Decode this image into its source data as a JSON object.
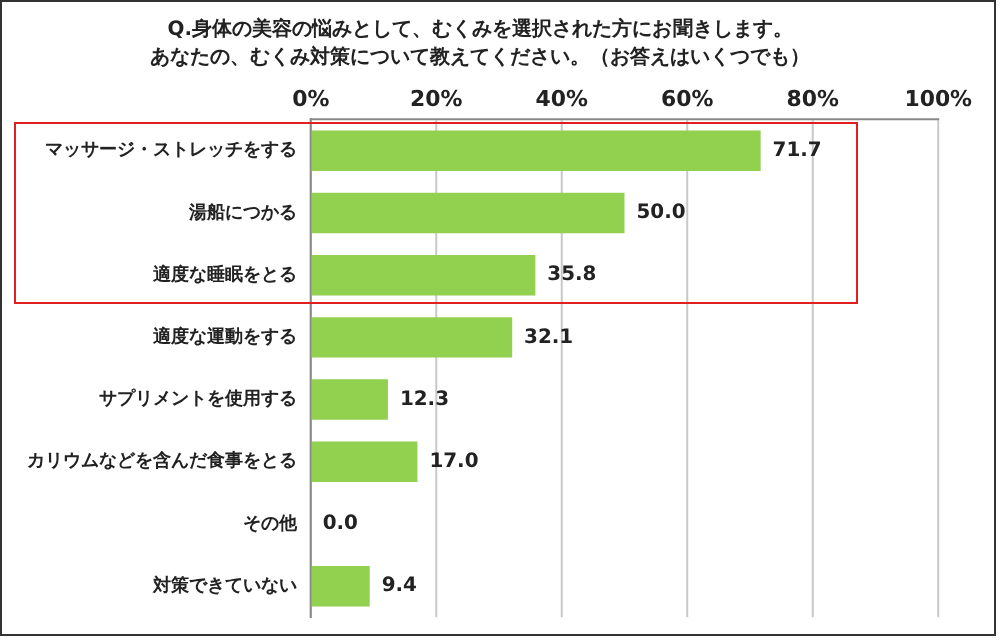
{
  "chart_data": {
    "type": "bar",
    "orientation": "horizontal",
    "title": "Q.身体の美容の悩みとして、むくみを選択された方にお聞きします。",
    "subtitle": "あなたの、むくみ対策について教えてください。（お答えはいくつでも）",
    "categories": [
      "マッサージ・ストレッチをする",
      "湯船につかる",
      "適度な睡眠をとる",
      "適度な運動をする",
      "サプリメントを使用する",
      "カリウムなどを含んだ食事をとる",
      "その他",
      "対策できていない"
    ],
    "values": [
      71.7,
      50.0,
      35.8,
      32.1,
      12.3,
      17.0,
      0.0,
      9.4
    ],
    "value_labels": [
      "71.7",
      "50.0",
      "35.8",
      "32.1",
      "12.3",
      "17.0",
      "0.0",
      "9.4"
    ],
    "color": "#92d050",
    "xlim": [
      0,
      100
    ],
    "xticks": [
      {
        "value": 0,
        "label": "0%"
      },
      {
        "value": 20,
        "label": "20%"
      },
      {
        "value": 40,
        "label": "40%"
      },
      {
        "value": 60,
        "label": "60%"
      },
      {
        "value": 80,
        "label": "80%"
      },
      {
        "value": 100,
        "label": "100%"
      }
    ],
    "grid": "x",
    "legend": false
  }
}
